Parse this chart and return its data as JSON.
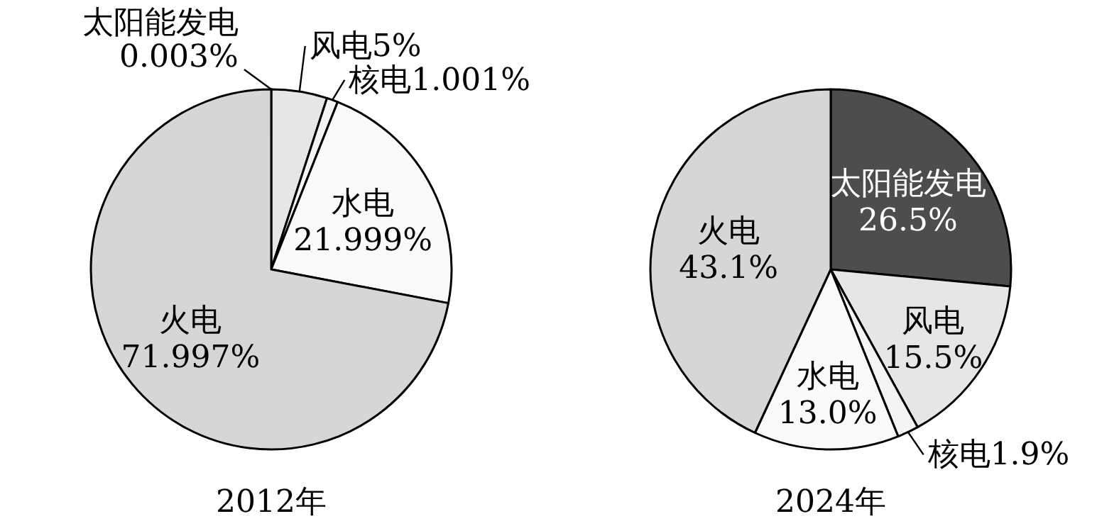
{
  "chart_data": [
    {
      "type": "pie",
      "title": "2012年",
      "categories": [
        "太阳能发电",
        "风电",
        "核电",
        "水电",
        "火电"
      ],
      "values": [
        0.003,
        5,
        1.001,
        21.999,
        71.997
      ],
      "value_labels": [
        "0.003%",
        "5%",
        "1.001%",
        "21.999%",
        "71.997%"
      ],
      "colors": [
        "#4d4d4d",
        "#e6e6e6",
        "#f4f4f4",
        "#fafafa",
        "#d6d6d6"
      ]
    },
    {
      "type": "pie",
      "title": "2024年",
      "categories": [
        "太阳能发电",
        "风电",
        "核电",
        "水电",
        "火电"
      ],
      "values": [
        26.5,
        15.5,
        1.9,
        13.0,
        43.1
      ],
      "value_labels": [
        "26.5%",
        "15.5%",
        "1.9%",
        "13.0%",
        "43.1%"
      ],
      "colors": [
        "#4d4d4d",
        "#e6e6e6",
        "#f4f4f4",
        "#fafafa",
        "#d6d6d6"
      ]
    }
  ]
}
